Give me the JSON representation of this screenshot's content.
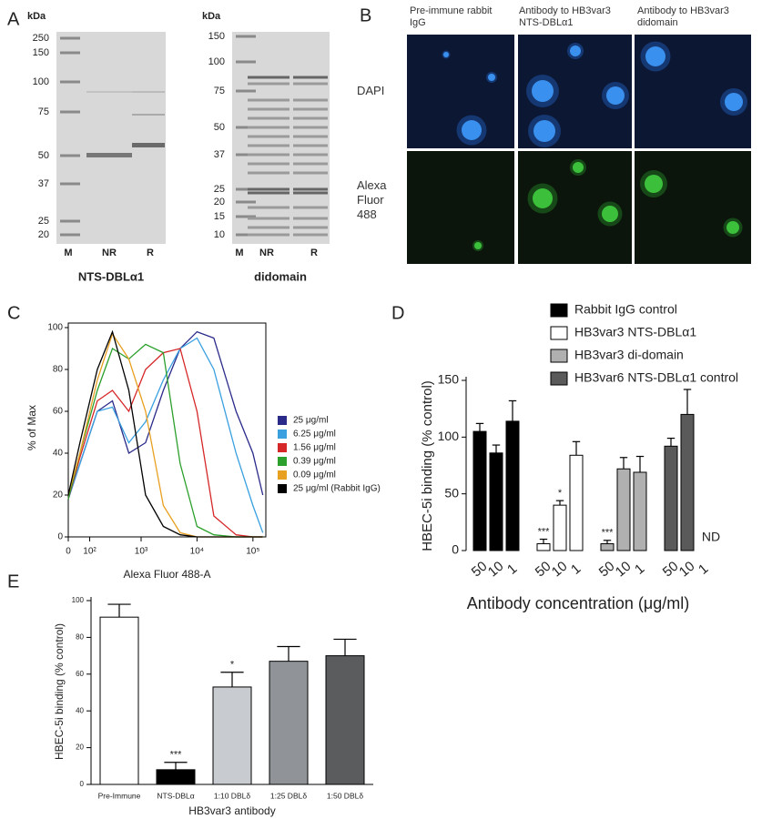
{
  "panel_a": {
    "letter": "A",
    "gels": [
      {
        "unit": "kDa",
        "markers": [
          "250",
          "150",
          "100",
          "75",
          "50",
          "37",
          "25",
          "20"
        ],
        "lanes": [
          "M",
          "NR",
          "R"
        ],
        "title": "NTS-DBLα1"
      },
      {
        "unit": "kDa",
        "markers": [
          "150",
          "100",
          "75",
          "50",
          "37",
          "25",
          "20",
          "15",
          "10"
        ],
        "lanes": [
          "M",
          "NR",
          "R"
        ],
        "title": "didomain"
      }
    ]
  },
  "panel_b": {
    "letter": "B",
    "columns": [
      "Pre-immune rabbit IgG",
      "Antibody to HB3var3 NTS-DBLα1",
      "Antibody to HB3var3 didomain"
    ],
    "rows": [
      "DAPI",
      "Alexa Fluor 488"
    ]
  },
  "chart_data": [
    {
      "type": "line",
      "letter": "C",
      "xlabel": "Alexa Fluor 488-A",
      "ylabel": "% of Max",
      "xscale": "biexponential",
      "x": [
        0,
        50,
        150,
        300,
        600,
        1200,
        2500,
        5000,
        10000,
        20000,
        50000,
        100000,
        150000
      ],
      "xlim": [
        0,
        170000
      ],
      "xticks": [
        {
          "value": 0,
          "label": "0"
        },
        {
          "value": 100,
          "label": "10²"
        },
        {
          "value": 1000,
          "label": "10³"
        },
        {
          "value": 10000,
          "label": "10⁴"
        },
        {
          "value": 100000,
          "label": "10⁵"
        }
      ],
      "ylim": [
        0,
        100
      ],
      "yticks": [
        0,
        20,
        40,
        60,
        80,
        100
      ],
      "series": [
        {
          "name": "25 μg/ml",
          "color": "#2a2a8a",
          "values": [
            18,
            35,
            60,
            65,
            40,
            45,
            70,
            90,
            98,
            95,
            60,
            40,
            20
          ]
        },
        {
          "name": "6.25 μg/ml",
          "color": "#3aa0e0",
          "values": [
            18,
            35,
            60,
            62,
            45,
            55,
            75,
            90,
            95,
            80,
            40,
            15,
            2
          ]
        },
        {
          "name": "1.56 μg/ml",
          "color": "#d62728",
          "values": [
            18,
            38,
            65,
            70,
            60,
            80,
            88,
            90,
            60,
            10,
            1,
            0,
            0
          ]
        },
        {
          "name": "0.39 μg/ml",
          "color": "#2ca02c",
          "values": [
            18,
            40,
            70,
            90,
            85,
            92,
            88,
            35,
            5,
            1,
            0,
            0,
            0
          ]
        },
        {
          "name": "0.09 μg/ml",
          "color": "#e8a020",
          "values": [
            20,
            40,
            75,
            97,
            85,
            60,
            15,
            2,
            0,
            0,
            0,
            0,
            0
          ]
        },
        {
          "name": "25 μg/ml (Rabbit IgG)",
          "color": "#000000",
          "values": [
            20,
            45,
            80,
            98,
            70,
            20,
            5,
            1,
            0,
            0,
            0,
            0,
            0
          ]
        }
      ]
    },
    {
      "type": "bar",
      "letter": "D",
      "xlabel": "Antibody concentration (μg/ml)",
      "ylabel": "HBEC-5i binding (% control)",
      "categories": [
        "50",
        "10",
        "1"
      ],
      "ylim": [
        0,
        150
      ],
      "yticks": [
        0,
        50,
        100,
        150
      ],
      "series": [
        {
          "name": "Rabbit IgG control",
          "color": "#000000",
          "values": [
            105,
            86,
            114
          ],
          "errors": [
            7,
            7,
            18
          ],
          "annotations": [
            null,
            null,
            null
          ]
        },
        {
          "name": "HB3var3 NTS-DBLα1",
          "color": "#ffffff",
          "values": [
            6,
            40,
            84
          ],
          "errors": [
            4,
            4,
            12
          ],
          "annotations": [
            "***",
            "*",
            null
          ]
        },
        {
          "name": "HB3var3 di-domain",
          "color": "#b0b0b0",
          "values": [
            6,
            72,
            69
          ],
          "errors": [
            3,
            10,
            14
          ],
          "annotations": [
            "***",
            null,
            null
          ]
        },
        {
          "name": "HB3var6 NTS-DBLα1 control",
          "color": "#5a5a5a",
          "values": [
            92,
            120,
            null
          ],
          "errors": [
            7,
            22,
            null
          ],
          "annotations": [
            null,
            null,
            "ND"
          ]
        }
      ]
    },
    {
      "type": "bar",
      "letter": "E",
      "xlabel": "HB3var3 antibody",
      "ylabel": "HBEC-5i binding (% control)",
      "categories": [
        "Pre-Immune",
        "NTS-DBLα",
        "1:10 DBLδ",
        "1:25 DBLδ",
        "1:50 DBLδ"
      ],
      "values": [
        91,
        8,
        53,
        67,
        70
      ],
      "errors": [
        7,
        4,
        8,
        8,
        9
      ],
      "annotations": [
        null,
        "***",
        "*",
        null,
        null
      ],
      "colors": [
        "#ffffff",
        "#000000",
        "#c8ccd0",
        "#909499",
        "#5a5c5e"
      ],
      "ylim": [
        0,
        100
      ],
      "yticks": [
        0,
        20,
        40,
        60,
        80,
        100
      ]
    }
  ]
}
